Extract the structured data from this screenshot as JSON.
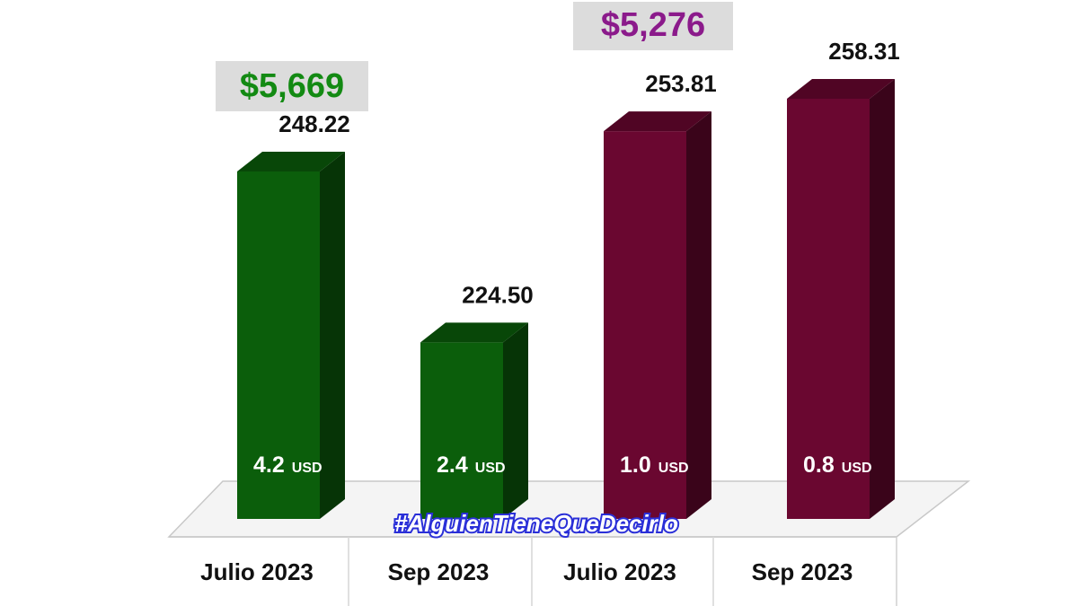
{
  "chart_data": {
    "type": "bar",
    "categories": [
      "Julio 2023",
      "Sep 2023",
      "Julio 2023",
      "Sep 2023"
    ],
    "values": [
      248.22,
      224.5,
      253.81,
      258.31
    ],
    "value_labels": [
      "248.22",
      "224.50",
      "253.81",
      "258.31"
    ],
    "usd_values": [
      "4.2",
      "2.4",
      "1.0",
      "0.8"
    ],
    "usd_unit": "USD",
    "group_totals": [
      {
        "label": "$5,669",
        "color": "#138a13"
      },
      {
        "label": "$5,276",
        "color": "#8b1a8b"
      }
    ],
    "bar_colors": [
      "#0b5e0b",
      "#0b5e0b",
      "#6a0730",
      "#6a0730"
    ],
    "ylim": [
      0,
      270
    ],
    "grid": false,
    "style": "3d"
  },
  "watermark": "#AlguienTieneQueDecirlo"
}
